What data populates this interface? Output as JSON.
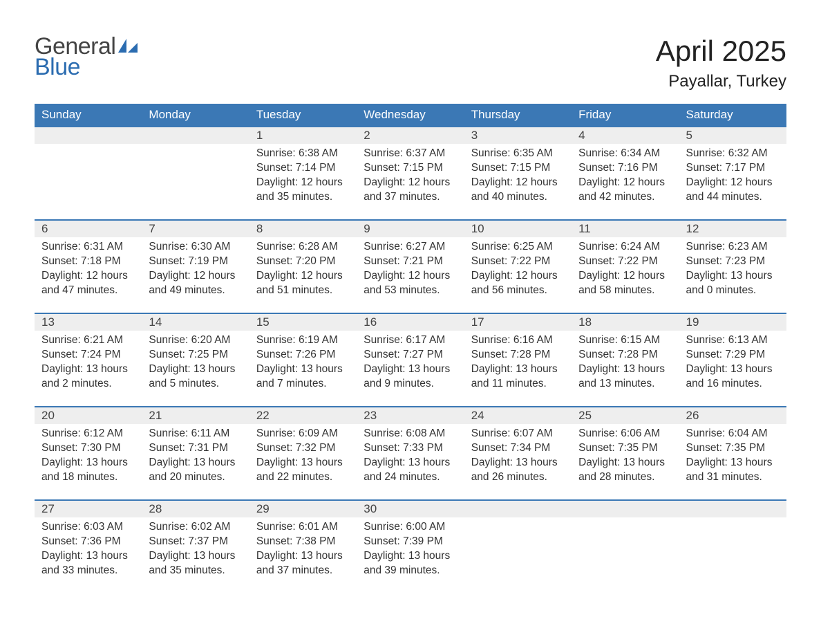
{
  "logo": {
    "word1": "General",
    "word2": "Blue"
  },
  "title": "April 2025",
  "location": "Payallar, Turkey",
  "colors": {
    "header_bg": "#3b78b5",
    "header_text": "#ffffff",
    "daynum_bg": "#eeeeee",
    "row_border": "#3b78b5",
    "logo_accent": "#2b6cb0",
    "body_text": "#333333",
    "background": "#ffffff"
  },
  "font": {
    "family": "Arial",
    "title_size": 42,
    "location_size": 24,
    "header_size": 17,
    "cell_size": 15.5
  },
  "day_headers": [
    "Sunday",
    "Monday",
    "Tuesday",
    "Wednesday",
    "Thursday",
    "Friday",
    "Saturday"
  ],
  "weeks": [
    [
      null,
      null,
      {
        "n": "1",
        "sr": "6:38 AM",
        "ss": "7:14 PM",
        "dl": "12 hours and 35 minutes."
      },
      {
        "n": "2",
        "sr": "6:37 AM",
        "ss": "7:15 PM",
        "dl": "12 hours and 37 minutes."
      },
      {
        "n": "3",
        "sr": "6:35 AM",
        "ss": "7:15 PM",
        "dl": "12 hours and 40 minutes."
      },
      {
        "n": "4",
        "sr": "6:34 AM",
        "ss": "7:16 PM",
        "dl": "12 hours and 42 minutes."
      },
      {
        "n": "5",
        "sr": "6:32 AM",
        "ss": "7:17 PM",
        "dl": "12 hours and 44 minutes."
      }
    ],
    [
      {
        "n": "6",
        "sr": "6:31 AM",
        "ss": "7:18 PM",
        "dl": "12 hours and 47 minutes."
      },
      {
        "n": "7",
        "sr": "6:30 AM",
        "ss": "7:19 PM",
        "dl": "12 hours and 49 minutes."
      },
      {
        "n": "8",
        "sr": "6:28 AM",
        "ss": "7:20 PM",
        "dl": "12 hours and 51 minutes."
      },
      {
        "n": "9",
        "sr": "6:27 AM",
        "ss": "7:21 PM",
        "dl": "12 hours and 53 minutes."
      },
      {
        "n": "10",
        "sr": "6:25 AM",
        "ss": "7:22 PM",
        "dl": "12 hours and 56 minutes."
      },
      {
        "n": "11",
        "sr": "6:24 AM",
        "ss": "7:22 PM",
        "dl": "12 hours and 58 minutes."
      },
      {
        "n": "12",
        "sr": "6:23 AM",
        "ss": "7:23 PM",
        "dl": "13 hours and 0 minutes."
      }
    ],
    [
      {
        "n": "13",
        "sr": "6:21 AM",
        "ss": "7:24 PM",
        "dl": "13 hours and 2 minutes."
      },
      {
        "n": "14",
        "sr": "6:20 AM",
        "ss": "7:25 PM",
        "dl": "13 hours and 5 minutes."
      },
      {
        "n": "15",
        "sr": "6:19 AM",
        "ss": "7:26 PM",
        "dl": "13 hours and 7 minutes."
      },
      {
        "n": "16",
        "sr": "6:17 AM",
        "ss": "7:27 PM",
        "dl": "13 hours and 9 minutes."
      },
      {
        "n": "17",
        "sr": "6:16 AM",
        "ss": "7:28 PM",
        "dl": "13 hours and 11 minutes."
      },
      {
        "n": "18",
        "sr": "6:15 AM",
        "ss": "7:28 PM",
        "dl": "13 hours and 13 minutes."
      },
      {
        "n": "19",
        "sr": "6:13 AM",
        "ss": "7:29 PM",
        "dl": "13 hours and 16 minutes."
      }
    ],
    [
      {
        "n": "20",
        "sr": "6:12 AM",
        "ss": "7:30 PM",
        "dl": "13 hours and 18 minutes."
      },
      {
        "n": "21",
        "sr": "6:11 AM",
        "ss": "7:31 PM",
        "dl": "13 hours and 20 minutes."
      },
      {
        "n": "22",
        "sr": "6:09 AM",
        "ss": "7:32 PM",
        "dl": "13 hours and 22 minutes."
      },
      {
        "n": "23",
        "sr": "6:08 AM",
        "ss": "7:33 PM",
        "dl": "13 hours and 24 minutes."
      },
      {
        "n": "24",
        "sr": "6:07 AM",
        "ss": "7:34 PM",
        "dl": "13 hours and 26 minutes."
      },
      {
        "n": "25",
        "sr": "6:06 AM",
        "ss": "7:35 PM",
        "dl": "13 hours and 28 minutes."
      },
      {
        "n": "26",
        "sr": "6:04 AM",
        "ss": "7:35 PM",
        "dl": "13 hours and 31 minutes."
      }
    ],
    [
      {
        "n": "27",
        "sr": "6:03 AM",
        "ss": "7:36 PM",
        "dl": "13 hours and 33 minutes."
      },
      {
        "n": "28",
        "sr": "6:02 AM",
        "ss": "7:37 PM",
        "dl": "13 hours and 35 minutes."
      },
      {
        "n": "29",
        "sr": "6:01 AM",
        "ss": "7:38 PM",
        "dl": "13 hours and 37 minutes."
      },
      {
        "n": "30",
        "sr": "6:00 AM",
        "ss": "7:39 PM",
        "dl": "13 hours and 39 minutes."
      },
      null,
      null,
      null
    ]
  ],
  "labels": {
    "sunrise": "Sunrise:",
    "sunset": "Sunset:",
    "daylight": "Daylight:"
  }
}
